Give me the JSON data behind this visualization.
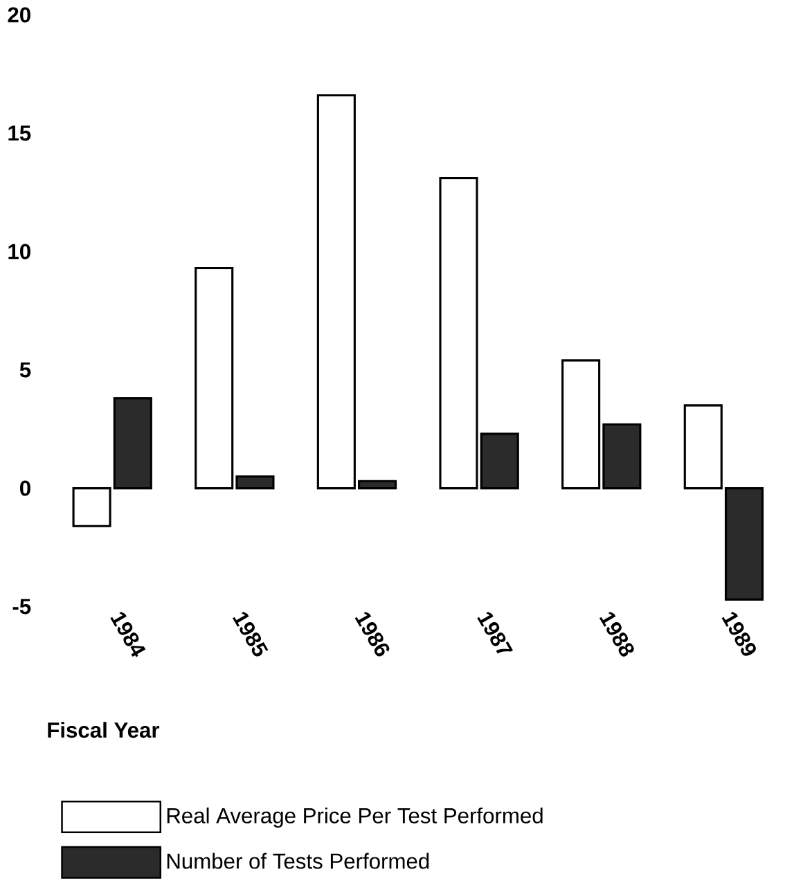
{
  "chart_data": {
    "type": "bar",
    "xlabel": "Fiscal Year",
    "categories": [
      "1984",
      "1985",
      "1986",
      "1987",
      "1988",
      "1989"
    ],
    "series": [
      {
        "name": "Real Average Price Per Test Performed",
        "color": "#ffffff",
        "values": [
          -1.6,
          9.3,
          16.6,
          13.1,
          5.4,
          3.5
        ]
      },
      {
        "name": "Number of Tests Performed",
        "color": "#2b2b2b",
        "values": [
          3.8,
          0.5,
          0.3,
          2.3,
          2.7,
          -4.7
        ]
      }
    ],
    "ylim": [
      -5,
      20
    ],
    "yticks": [
      -5,
      0,
      5,
      10,
      15,
      20
    ],
    "grid": false,
    "legend": "bottom"
  }
}
